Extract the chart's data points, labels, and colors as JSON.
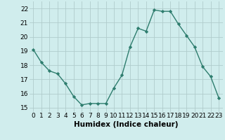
{
  "x": [
    0,
    1,
    2,
    3,
    4,
    5,
    6,
    7,
    8,
    9,
    10,
    11,
    12,
    13,
    14,
    15,
    16,
    17,
    18,
    19,
    20,
    21,
    22,
    23
  ],
  "y": [
    19.1,
    18.2,
    17.6,
    17.4,
    16.7,
    15.8,
    15.2,
    15.3,
    15.3,
    15.3,
    16.4,
    17.3,
    19.3,
    20.6,
    20.4,
    21.9,
    21.8,
    21.8,
    20.9,
    20.1,
    19.3,
    17.9,
    17.2,
    15.7
  ],
  "line_color": "#2e7d6e",
  "marker": "D",
  "marker_size": 2.2,
  "line_width": 1.0,
  "bg_color": "#d0eded",
  "grid_color": "#b0cccc",
  "xlabel": "Humidex (Indice chaleur)",
  "xlabel_fontsize": 7.5,
  "yticks": [
    15,
    16,
    17,
    18,
    19,
    20,
    21,
    22
  ],
  "xticks": [
    0,
    1,
    2,
    3,
    4,
    5,
    6,
    7,
    8,
    9,
    10,
    11,
    12,
    13,
    14,
    15,
    16,
    17,
    18,
    19,
    20,
    21,
    22,
    23
  ],
  "ylim": [
    14.7,
    22.5
  ],
  "xlim": [
    -0.5,
    23.5
  ],
  "tick_fontsize": 6.5
}
